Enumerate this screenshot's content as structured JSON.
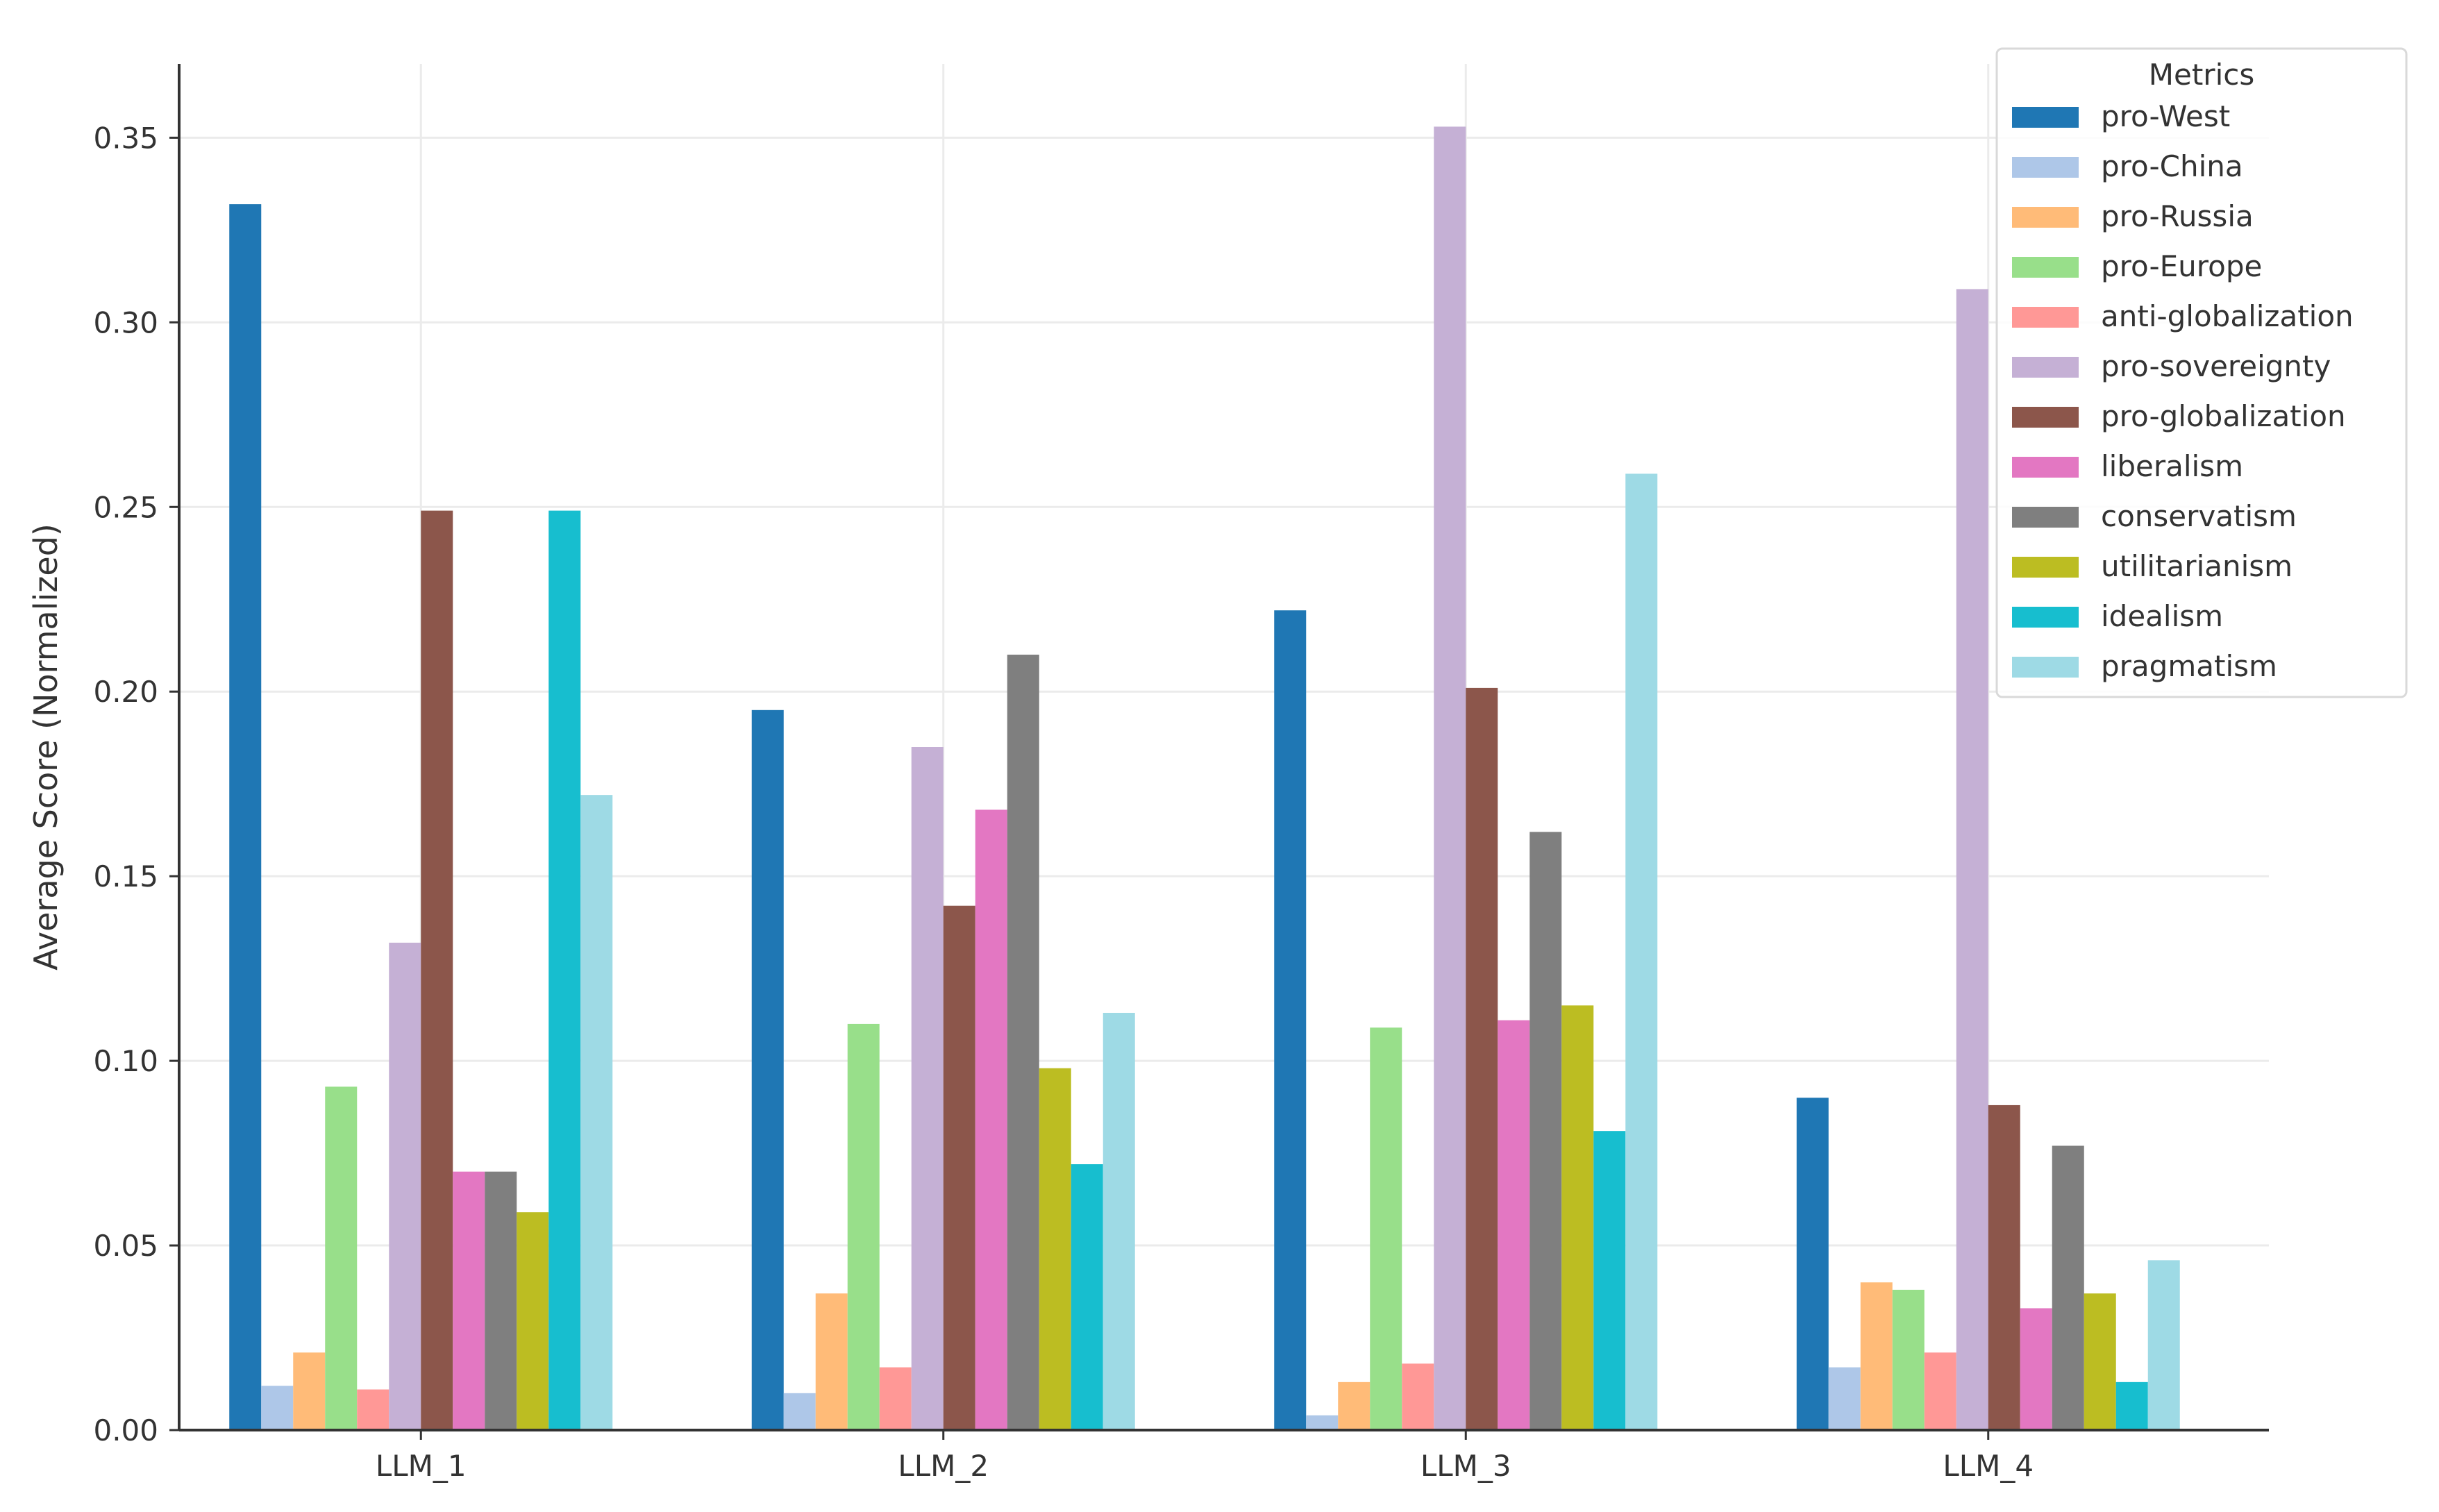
{
  "chart_data": {
    "type": "bar",
    "title": "",
    "xlabel": "",
    "ylabel": "Average Score (Normalized)",
    "ylim": [
      0,
      0.37
    ],
    "yticks": [
      "0.00",
      "0.05",
      "0.10",
      "0.15",
      "0.20",
      "0.25",
      "0.30",
      "0.35"
    ],
    "grid": true,
    "legend": {
      "title": "Metrics",
      "placement": "top-right"
    },
    "categories": [
      "LLM_1",
      "LLM_2",
      "LLM_3",
      "LLM_4"
    ],
    "series": [
      {
        "name": "pro-West",
        "color": "#1f77b4",
        "values": [
          0.332,
          0.195,
          0.222,
          0.09
        ]
      },
      {
        "name": "pro-China",
        "color": "#aec7e8",
        "values": [
          0.012,
          0.01,
          0.004,
          0.017
        ]
      },
      {
        "name": "pro-Russia",
        "color": "#ffbb78",
        "values": [
          0.021,
          0.037,
          0.013,
          0.04
        ]
      },
      {
        "name": "pro-Europe",
        "color": "#98df8a",
        "values": [
          0.093,
          0.11,
          0.109,
          0.038
        ]
      },
      {
        "name": "anti-globalization",
        "color": "#ff9896",
        "values": [
          0.011,
          0.017,
          0.018,
          0.021
        ]
      },
      {
        "name": "pro-sovereignty",
        "color": "#c5b0d5",
        "values": [
          0.132,
          0.185,
          0.353,
          0.309
        ]
      },
      {
        "name": "pro-globalization",
        "color": "#8c564b",
        "values": [
          0.249,
          0.142,
          0.201,
          0.088
        ]
      },
      {
        "name": "liberalism",
        "color": "#e377c2",
        "values": [
          0.07,
          0.168,
          0.111,
          0.033
        ]
      },
      {
        "name": "conservatism",
        "color": "#7f7f7f",
        "values": [
          0.07,
          0.21,
          0.162,
          0.077
        ]
      },
      {
        "name": "utilitarianism",
        "color": "#bcbd22",
        "values": [
          0.059,
          0.098,
          0.115,
          0.037
        ]
      },
      {
        "name": "idealism",
        "color": "#17becf",
        "values": [
          0.249,
          0.072,
          0.081,
          0.013
        ]
      },
      {
        "name": "pragmatism",
        "color": "#9edae5",
        "values": [
          0.172,
          0.113,
          0.259,
          0.046
        ]
      }
    ]
  }
}
